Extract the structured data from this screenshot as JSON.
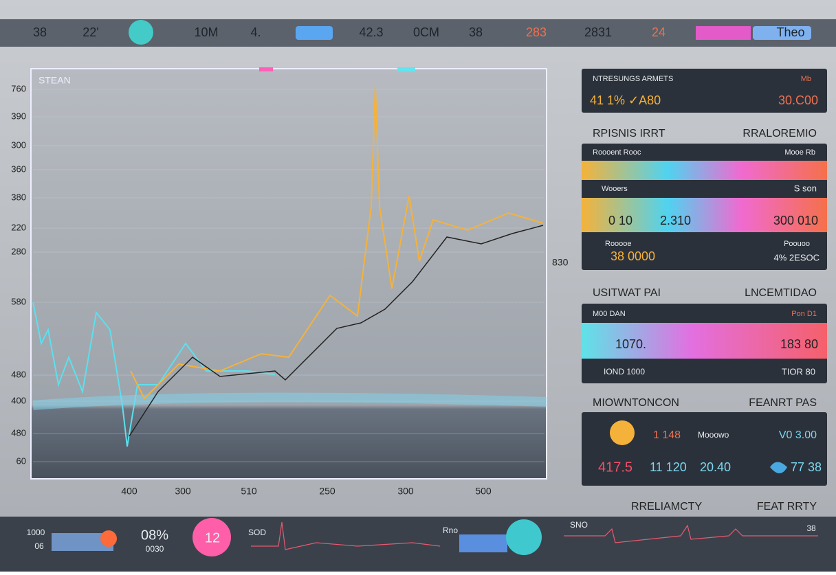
{
  "top_bar": {
    "items": [
      "38",
      "22'",
      "10M",
      "4.",
      "42.3",
      "0CM",
      "38",
      "283",
      "2831",
      "24",
      "Theo"
    ]
  },
  "chart": {
    "title": "STEAN",
    "y_labels": [
      "760",
      "390",
      "300",
      "360",
      "380",
      "220",
      "280",
      "580",
      "480",
      "400",
      "480",
      "60"
    ],
    "x_labels": [
      "400",
      "300",
      "510",
      "250",
      "300",
      "500"
    ],
    "right_label": "830"
  },
  "cards": {
    "c1": {
      "title": "NTRESUNGS ARMETS",
      "tag": "Mb",
      "left": "41 1% ✓A80",
      "right": "30.C00"
    },
    "h1": {
      "left": "RPISNIS IRRT",
      "right": "RRALOREMIO"
    },
    "c2": {
      "r1l": "Roooent Rooc",
      "r1r": "Mooe Rb",
      "r2l": "Wooers",
      "r2r": "S son",
      "v1": "0 10",
      "v2": "2.310",
      "v3": "300 010",
      "r3l": "Rooooe",
      "r3v": "38 0000",
      "r3r": "Poouoo",
      "r3rv": "4% 2ESOC"
    },
    "h2": {
      "left": "USITWAT PAI",
      "right": "LNCEMTIDAO"
    },
    "c3": {
      "tl": "M00 DAN",
      "tr": "Pon D1",
      "v1": "1070.",
      "v2": "183 80",
      "bl": "IOND 1000",
      "br": "TIOR 80"
    },
    "h3": {
      "left": "MIOWNTONCON",
      "right": "FEANRT PAS"
    },
    "c4": {
      "a": "1 148",
      "b": "Mooowo",
      "c": "V0 3.00",
      "d": "417.5",
      "e": "11 120",
      "f": "20.40",
      "g": "77 38"
    },
    "h4": {
      "left": "RRELIAMCTY",
      "right": "FEAT RRTY"
    }
  },
  "bottom_bar": {
    "items": [
      "1000",
      "06",
      "08%",
      "0030",
      "12",
      "SOD",
      "Rno",
      "SNO",
      "38"
    ]
  }
}
